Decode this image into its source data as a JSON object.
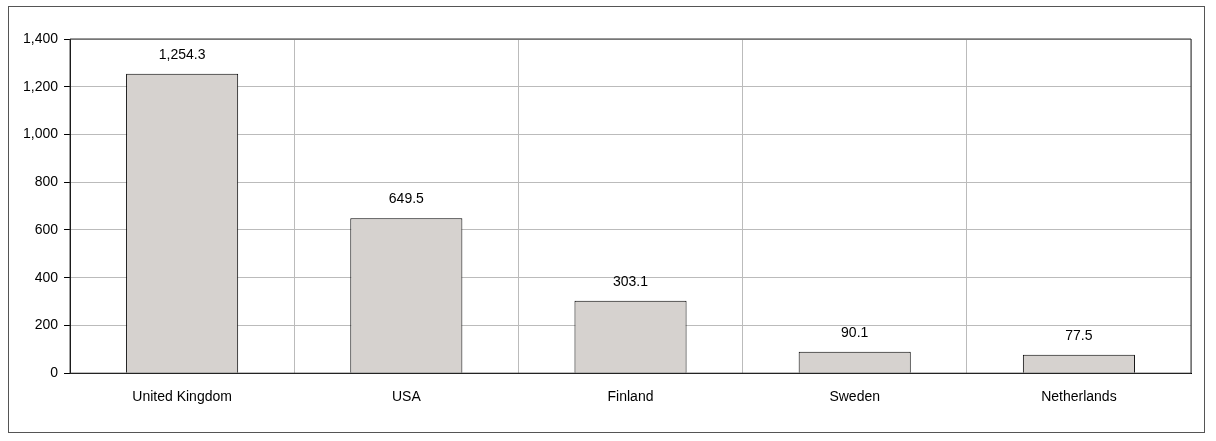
{
  "chart_data": {
    "type": "bar",
    "categories": [
      "United Kingdom",
      "USA",
      "Finland",
      "Sweden",
      "Netherlands"
    ],
    "values": [
      1254.3,
      649.5,
      303.1,
      90.1,
      77.5
    ],
    "value_labels": [
      "1,254.3",
      "649.5",
      "303.1",
      "90.1",
      "77.5"
    ],
    "color": "#d6d2cf",
    "ylim": [
      0,
      1400
    ],
    "yticks": [
      0,
      200,
      400,
      600,
      800,
      {
        "value": 1000,
        "label": "1,000"
      },
      {
        "value": 1200,
        "label": "1,200"
      },
      {
        "value": 1400,
        "label": "1,400"
      }
    ],
    "grid": true
  }
}
